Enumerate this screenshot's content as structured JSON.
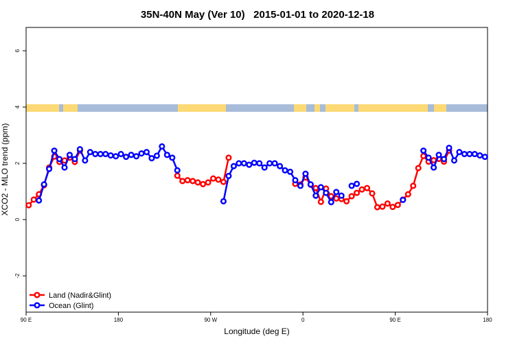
{
  "chart_data": {
    "type": "line",
    "title": "35N-40N May (Ver 10)   2015-01-01 to 2020-12-18",
    "xlabel": "Longitude (deg E)",
    "ylabel": "XCO2 - MLO trend (ppm)",
    "x": [
      92.5,
      97.5,
      102.5,
      107.5,
      112.5,
      117.5,
      122.5,
      127.5,
      132.5,
      137.5,
      142.5,
      147.5,
      152.5,
      157.5,
      162.5,
      167.5,
      172.5,
      177.5,
      182.5,
      187.5,
      192.5,
      197.5,
      202.5,
      207.5,
      212.5,
      217.5,
      222.5,
      227.5,
      232.5,
      237.5,
      242.5,
      247.5,
      252.5,
      257.5,
      262.5,
      267.5,
      272.5,
      277.5,
      282.5,
      287.5,
      292.5,
      297.5,
      302.5,
      307.5,
      312.5,
      317.5,
      322.5,
      327.5,
      332.5,
      337.5,
      342.5,
      347.5,
      352.5,
      357.5,
      362.5,
      367.5,
      372.5,
      377.5,
      382.5,
      387.5,
      392.5,
      397.5,
      402.5,
      407.5,
      412.5,
      417.5,
      422.5,
      427.5,
      432.5,
      437.5,
      442.5,
      447.5,
      452.5,
      457.5,
      462.5,
      467.5,
      472.5,
      477.5,
      482.5,
      487.5,
      492.5,
      497.5,
      502.5,
      507.5,
      512.5,
      517.5,
      522.5,
      527.5,
      532.5,
      537.5
    ],
    "series": [
      {
        "name": "Land (Nadir&Glint)",
        "color": "#ff0000",
        "values": [
          0.51,
          0.71,
          0.9,
          1.22,
          1.85,
          2.24,
          2.05,
          2.1,
          2.2,
          2.05,
          2.45,
          null,
          null,
          null,
          null,
          null,
          null,
          null,
          null,
          null,
          null,
          null,
          null,
          null,
          null,
          null,
          null,
          null,
          null,
          1.56,
          1.37,
          1.4,
          1.37,
          1.32,
          1.26,
          1.32,
          1.46,
          1.42,
          1.34,
          2.2,
          null,
          null,
          null,
          null,
          null,
          null,
          null,
          null,
          null,
          null,
          null,
          null,
          1.27,
          1.25,
          1.5,
          1.24,
          1.12,
          0.63,
          1.1,
          0.83,
          0.75,
          0.73,
          0.65,
          0.83,
          0.95,
          1.07,
          1.12,
          0.93,
          0.44,
          0.46,
          0.57,
          0.45,
          0.52,
          0.71,
          0.9,
          1.2,
          1.83,
          2.26,
          2.06,
          2.11,
          2.16,
          2.06,
          2.45,
          null,
          null,
          null,
          null,
          null,
          null,
          null
        ]
      },
      {
        "name": "Ocean (Glint)",
        "color": "#0000ff",
        "values": [
          null,
          null,
          0.68,
          1.25,
          1.8,
          2.45,
          2.15,
          1.85,
          2.3,
          2.15,
          2.5,
          2.1,
          2.4,
          2.33,
          2.33,
          2.33,
          2.28,
          2.25,
          2.33,
          2.23,
          2.3,
          2.25,
          2.35,
          2.4,
          2.18,
          2.27,
          2.6,
          2.3,
          2.2,
          1.75,
          null,
          null,
          null,
          null,
          null,
          null,
          null,
          null,
          0.65,
          1.55,
          1.9,
          2.0,
          2.0,
          1.95,
          2.02,
          2.0,
          1.85,
          2.0,
          2.0,
          1.9,
          1.75,
          1.7,
          1.4,
          1.2,
          1.63,
          1.25,
          0.85,
          1.15,
          0.95,
          0.62,
          0.98,
          0.85,
          null,
          1.2,
          1.27,
          null,
          null,
          null,
          null,
          null,
          null,
          null,
          null,
          0.7,
          null,
          null,
          null,
          2.45,
          2.2,
          1.85,
          2.3,
          2.15,
          2.55,
          2.1,
          2.4,
          2.33,
          2.33,
          2.33,
          2.28,
          2.23
        ]
      }
    ],
    "xlim": [
      90,
      540
    ],
    "xticks": [
      {
        "value": 90,
        "label": "90 E"
      },
      180,
      {
        "value": 270,
        "label": "90 W"
      },
      {
        "value": 360,
        "label": "0"
      },
      {
        "value": 450,
        "label": "90 E"
      },
      {
        "value": 540,
        "label": "180"
      }
    ],
    "ylim": [
      -3.29,
      6.83
    ],
    "yticks": [
      -2,
      0,
      2,
      4,
      6
    ],
    "legend": "bottom-left"
  }
}
